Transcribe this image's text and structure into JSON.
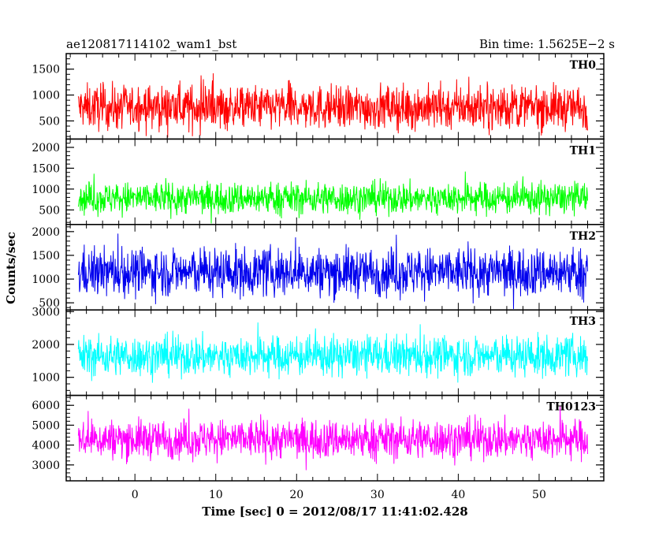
{
  "header": {
    "obs_id": "ae120817114102_wam1_bst",
    "bin_time": "Bin time: 1.5625E−2 s"
  },
  "chart_data": {
    "type": "line",
    "x_label": "Time [sec] 0 = 2012/08/17 11:41:02.428",
    "y_label": "Counts/sec",
    "x_range": [
      -8.5,
      58
    ],
    "x_data_range": [
      -7.0,
      56.0
    ],
    "x_ticks": [
      0,
      10,
      20,
      30,
      40,
      50
    ],
    "x_minor_step": 2,
    "panels": [
      {
        "name": "TH0",
        "color": "#ff0000",
        "ylim": [
          150,
          1800
        ],
        "y_ticks": [
          500,
          1000,
          1500
        ],
        "y_minor_step": 100,
        "mean": 760,
        "spread": 300,
        "min_clip": 180,
        "max_clip": 1780
      },
      {
        "name": "TH1",
        "color": "#00ff00",
        "ylim": [
          150,
          2200
        ],
        "y_ticks": [
          500,
          1000,
          1500,
          2000
        ],
        "y_minor_step": 100,
        "mean": 780,
        "spread": 270,
        "min_clip": 170,
        "max_clip": 2150
      },
      {
        "name": "TH2",
        "color": "#0000ee",
        "ylim": [
          350,
          2150
        ],
        "y_ticks": [
          500,
          1000,
          1500,
          2000
        ],
        "y_minor_step": 100,
        "mean": 1150,
        "spread": 360,
        "min_clip": 370,
        "max_clip": 2140
      },
      {
        "name": "TH3",
        "color": "#00ffff",
        "ylim": [
          450,
          3050
        ],
        "y_ticks": [
          1000,
          2000,
          3000
        ],
        "y_minor_step": 200,
        "mean": 1650,
        "spread": 430,
        "min_clip": 480,
        "max_clip": 3040
      },
      {
        "name": "TH0123",
        "color": "#ff00ff",
        "ylim": [
          2200,
          6500
        ],
        "y_ticks": [
          3000,
          4000,
          5000,
          6000
        ],
        "y_minor_step": 200,
        "mean": 4300,
        "spread": 700,
        "min_clip": 2250,
        "max_clip": 6480
      }
    ]
  }
}
